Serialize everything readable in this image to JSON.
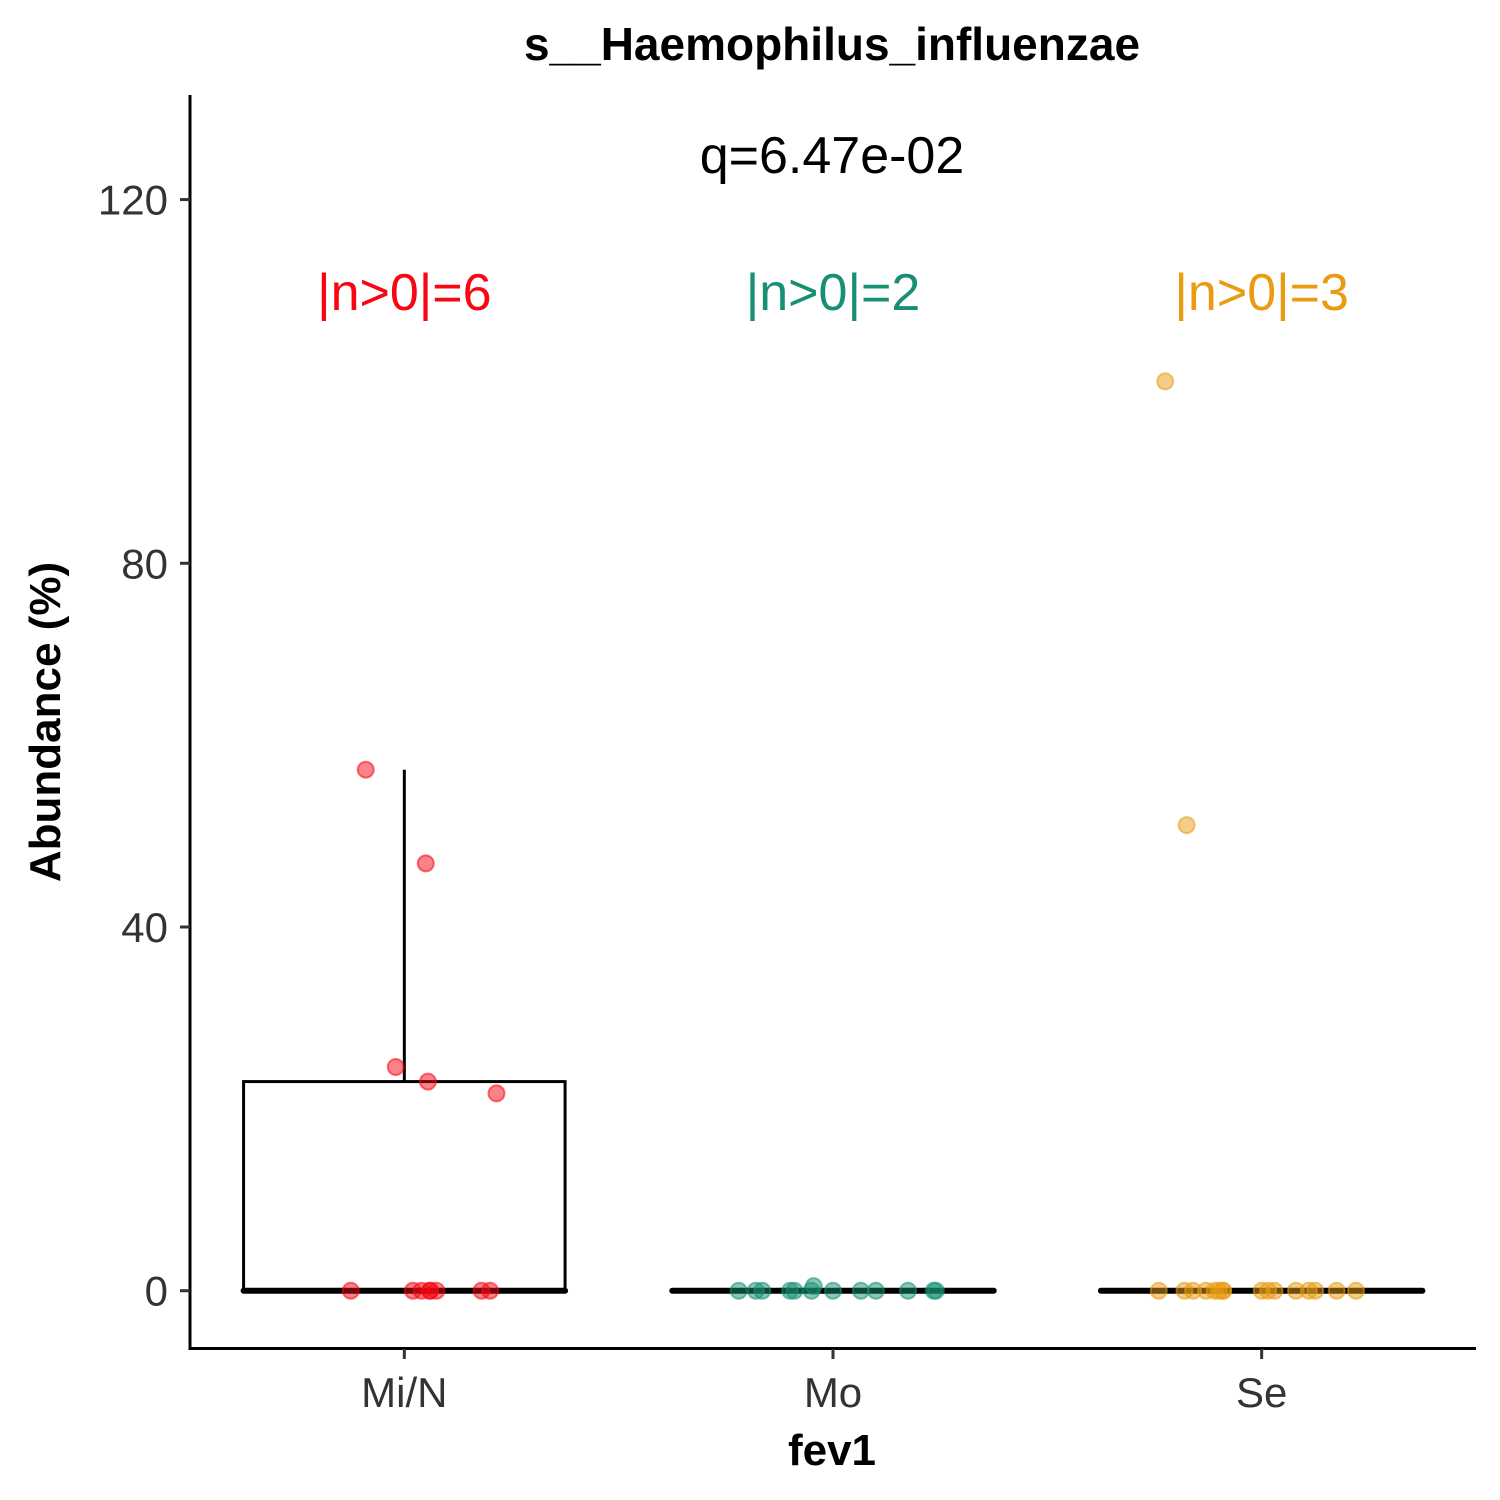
{
  "chart_data": {
    "type": "box",
    "title": "s__Haemophilus_influenzae",
    "xlabel": "fev1",
    "ylabel": "Abundance (%)",
    "categories": [
      "Mi/N",
      "Mo",
      "Se"
    ],
    "ylim": [
      -6.3,
      131.5
    ],
    "yticks": [
      0,
      40,
      80,
      120
    ],
    "annotation": "q=6.47e-02",
    "grid": false,
    "colors": [
      "#f80613",
      "#168f74",
      "#ea9b12"
    ],
    "group_labels": [
      "|n>0|=6",
      "|n>0|=2",
      "|n>0|=3"
    ],
    "boxes": [
      {
        "category": "Mi/N",
        "min": 0,
        "q1": 0,
        "median": 0,
        "q3": 23.0,
        "whisker_high": 57.3
      },
      {
        "category": "Mo",
        "min": 0,
        "q1": 0,
        "median": 0,
        "q3": 0,
        "whisker_high": 0
      },
      {
        "category": "Se",
        "min": 0,
        "q1": 0,
        "median": 0,
        "q3": 0,
        "whisker_high": 0
      }
    ],
    "points": [
      {
        "category": "Mi/N",
        "values": [
          57.3,
          47.0,
          24.6,
          23.0,
          21.7,
          0,
          0,
          0,
          0,
          0,
          0,
          0,
          0
        ],
        "jitter": [
          -0.09,
          0.05,
          -0.02,
          0.055,
          0.215,
          -0.125,
          0.02,
          0.06,
          0.075,
          0.06,
          0.18,
          0.2,
          0.04
        ]
      },
      {
        "category": "Mo",
        "values": [
          0,
          0.5,
          0,
          0,
          0,
          0,
          0,
          0,
          0,
          0,
          0,
          0,
          0
        ],
        "jitter": [
          -0.18,
          -0.045,
          -0.22,
          -0.165,
          -0.1,
          -0.09,
          0.0,
          0.065,
          0.175,
          0.24,
          0.235,
          -0.05,
          0.1
        ]
      },
      {
        "category": "Se",
        "values": [
          100.0,
          51.2,
          0,
          0,
          0,
          0,
          0,
          0,
          0,
          0,
          0,
          0,
          0,
          0,
          0,
          0,
          0,
          0
        ],
        "jitter": [
          -0.225,
          -0.175,
          -0.24,
          -0.18,
          -0.16,
          -0.13,
          -0.11,
          -0.09,
          -0.1,
          -0.09,
          0.0,
          0.015,
          0.03,
          0.08,
          0.11,
          0.125,
          0.175,
          0.22
        ]
      }
    ]
  }
}
